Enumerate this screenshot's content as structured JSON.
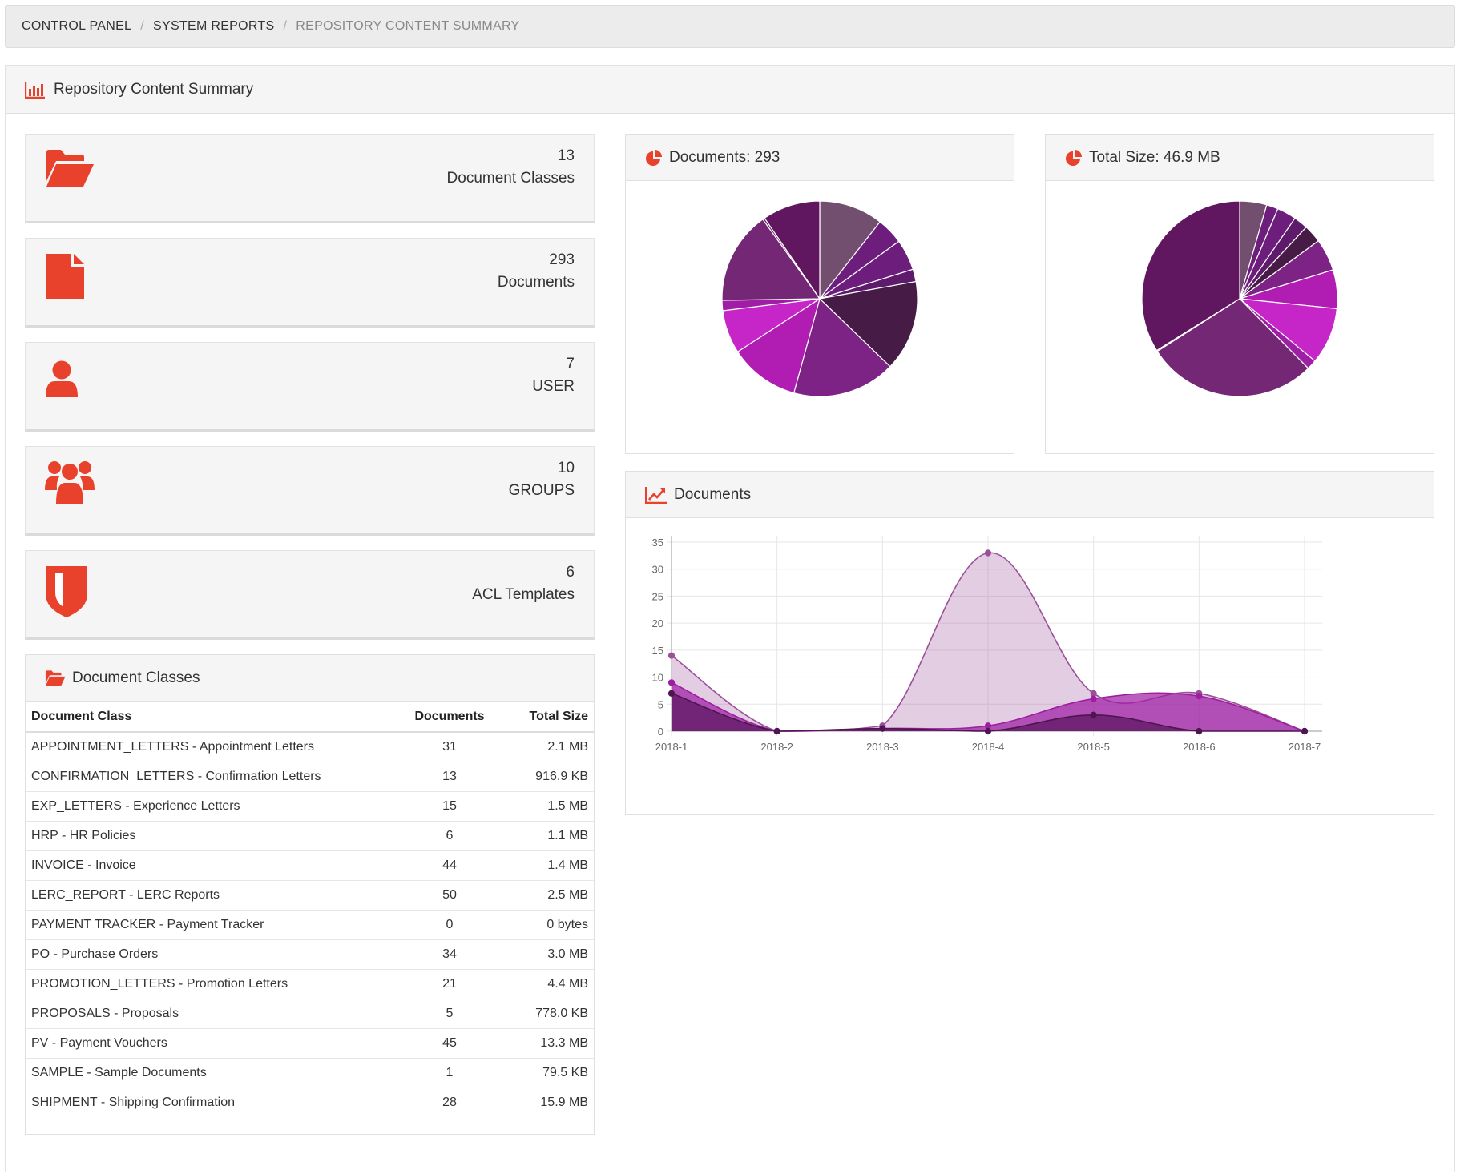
{
  "breadcrumb": {
    "items": [
      "CONTROL PANEL",
      "SYSTEM REPORTS",
      "REPOSITORY CONTENT SUMMARY"
    ]
  },
  "panel": {
    "title": "Repository Content Summary"
  },
  "stats": [
    {
      "value": "13",
      "label": "Document Classes",
      "icon": "folder-open-icon"
    },
    {
      "value": "293",
      "label": "Documents",
      "icon": "file-icon"
    },
    {
      "value": "7",
      "label": "USER",
      "icon": "user-icon"
    },
    {
      "value": "10",
      "label": "GROUPS",
      "icon": "users-icon"
    },
    {
      "value": "6",
      "label": "ACL Templates",
      "icon": "shield-icon"
    }
  ],
  "doc_classes": {
    "title": "Document Classes",
    "headers": [
      "Document Class",
      "Documents",
      "Total Size"
    ],
    "rows": [
      [
        "APPOINTMENT_LETTERS - Appointment Letters",
        "31",
        "2.1 MB"
      ],
      [
        "CONFIRMATION_LETTERS - Confirmation Letters",
        "13",
        "916.9 KB"
      ],
      [
        "EXP_LETTERS - Experience Letters",
        "15",
        "1.5 MB"
      ],
      [
        "HRP - HR Policies",
        "6",
        "1.1 MB"
      ],
      [
        "INVOICE - Invoice",
        "44",
        "1.4 MB"
      ],
      [
        "LERC_REPORT - LERC Reports",
        "50",
        "2.5 MB"
      ],
      [
        "PAYMENT TRACKER - Payment Tracker",
        "0",
        "0 bytes"
      ],
      [
        "PO - Purchase Orders",
        "34",
        "3.0 MB"
      ],
      [
        "PROMOTION_LETTERS - Promotion Letters",
        "21",
        "4.4 MB"
      ],
      [
        "PROPOSALS - Proposals",
        "5",
        "778.0 KB"
      ],
      [
        "PV - Payment Vouchers",
        "45",
        "13.3 MB"
      ],
      [
        "SAMPLE - Sample Documents",
        "1",
        "79.5 KB"
      ],
      [
        "SHIPMENT - Shipping Confirmation",
        "28",
        "15.9 MB"
      ]
    ]
  },
  "colors": {
    "accent": "#e8412c",
    "pie": [
      "#734f6f",
      "#6d1e7d",
      "#6d1e7d",
      "#5e1a6b",
      "#461c46",
      "#7d2385",
      "#a31aa6",
      "#b11cb2",
      "#c625c8",
      "#9e1fa6",
      "#742774",
      "#6d236b",
      "#611760"
    ]
  },
  "chart_data": [
    {
      "type": "pie",
      "title": "Documents: 293",
      "categories": [
        "APPOINTMENT_LETTERS",
        "CONFIRMATION_LETTERS",
        "EXP_LETTERS",
        "HRP",
        "INVOICE",
        "LERC_REPORT",
        "PAYMENT TRACKER",
        "PO",
        "PROMOTION_LETTERS",
        "PROPOSALS",
        "PV",
        "SAMPLE",
        "SHIPMENT"
      ],
      "values": [
        31,
        13,
        15,
        6,
        44,
        50,
        0,
        34,
        21,
        5,
        45,
        1,
        28
      ]
    },
    {
      "type": "pie",
      "title": "Total Size: 46.9 MB",
      "categories": [
        "APPOINTMENT_LETTERS",
        "CONFIRMATION_LETTERS",
        "EXP_LETTERS",
        "HRP",
        "INVOICE",
        "LERC_REPORT",
        "PAYMENT TRACKER",
        "PO",
        "PROMOTION_LETTERS",
        "PROPOSALS",
        "PV",
        "SAMPLE",
        "SHIPMENT"
      ],
      "values": [
        2.1,
        0.9,
        1.5,
        1.1,
        1.4,
        2.5,
        0,
        3.0,
        4.4,
        0.76,
        13.3,
        0.08,
        15.9
      ]
    },
    {
      "type": "area",
      "title": "Documents",
      "categories": [
        "2018-1",
        "2018-2",
        "2018-3",
        "2018-4",
        "2018-5",
        "2018-6",
        "2018-7"
      ],
      "ylim": [
        0,
        35
      ],
      "yticks": [
        0,
        5,
        10,
        15,
        20,
        25,
        30,
        35
      ],
      "grid": true,
      "series": [
        {
          "values": [
            14,
            0,
            1,
            33,
            7,
            7,
            0
          ],
          "color": "#9b4f99",
          "fill": "rgba(160,90,160,0.30)"
        },
        {
          "values": [
            9,
            0,
            0.5,
            1,
            6,
            6.5,
            0
          ],
          "color": "#9d1fa0",
          "fill": "rgba(160,30,165,0.72)"
        },
        {
          "values": [
            7,
            0,
            0.5,
            0,
            3,
            0,
            0
          ],
          "color": "#4e1550",
          "fill": "rgba(80,15,85,0.65)"
        }
      ]
    }
  ]
}
